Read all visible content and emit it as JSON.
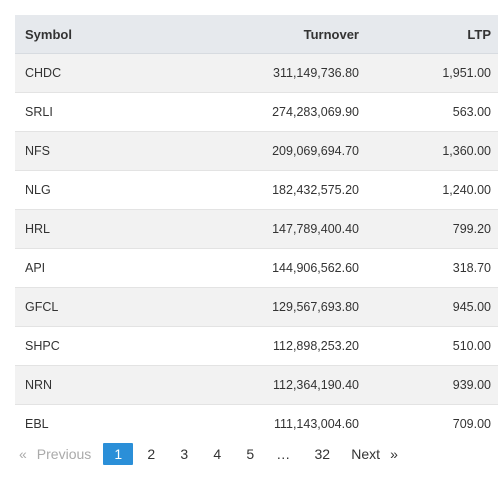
{
  "table": {
    "headers": {
      "symbol": "Symbol",
      "turnover": "Turnover",
      "ltp": "LTP"
    },
    "rows": [
      {
        "symbol": "CHDC",
        "turnover": "311,149,736.80",
        "ltp": "1,951.00"
      },
      {
        "symbol": "SRLI",
        "turnover": "274,283,069.90",
        "ltp": "563.00"
      },
      {
        "symbol": "NFS",
        "turnover": "209,069,694.70",
        "ltp": "1,360.00"
      },
      {
        "symbol": "NLG",
        "turnover": "182,432,575.20",
        "ltp": "1,240.00"
      },
      {
        "symbol": "HRL",
        "turnover": "147,789,400.40",
        "ltp": "799.20"
      },
      {
        "symbol": "API",
        "turnover": "144,906,562.60",
        "ltp": "318.70"
      },
      {
        "symbol": "GFCL",
        "turnover": "129,567,693.80",
        "ltp": "945.00"
      },
      {
        "symbol": "SHPC",
        "turnover": "112,898,253.20",
        "ltp": "510.00"
      },
      {
        "symbol": "NRN",
        "turnover": "112,364,190.40",
        "ltp": "939.00"
      },
      {
        "symbol": "EBL",
        "turnover": "111,143,004.60",
        "ltp": "709.00"
      }
    ]
  },
  "pagination": {
    "prev_arrow": "«",
    "prev_label": "Previous",
    "pages": [
      "1",
      "2",
      "3",
      "4",
      "5"
    ],
    "ellipsis": "…",
    "last_page": "32",
    "next_label": "Next",
    "next_arrow": "»",
    "current_page": "1",
    "accent_color": "#2b8fd8"
  }
}
